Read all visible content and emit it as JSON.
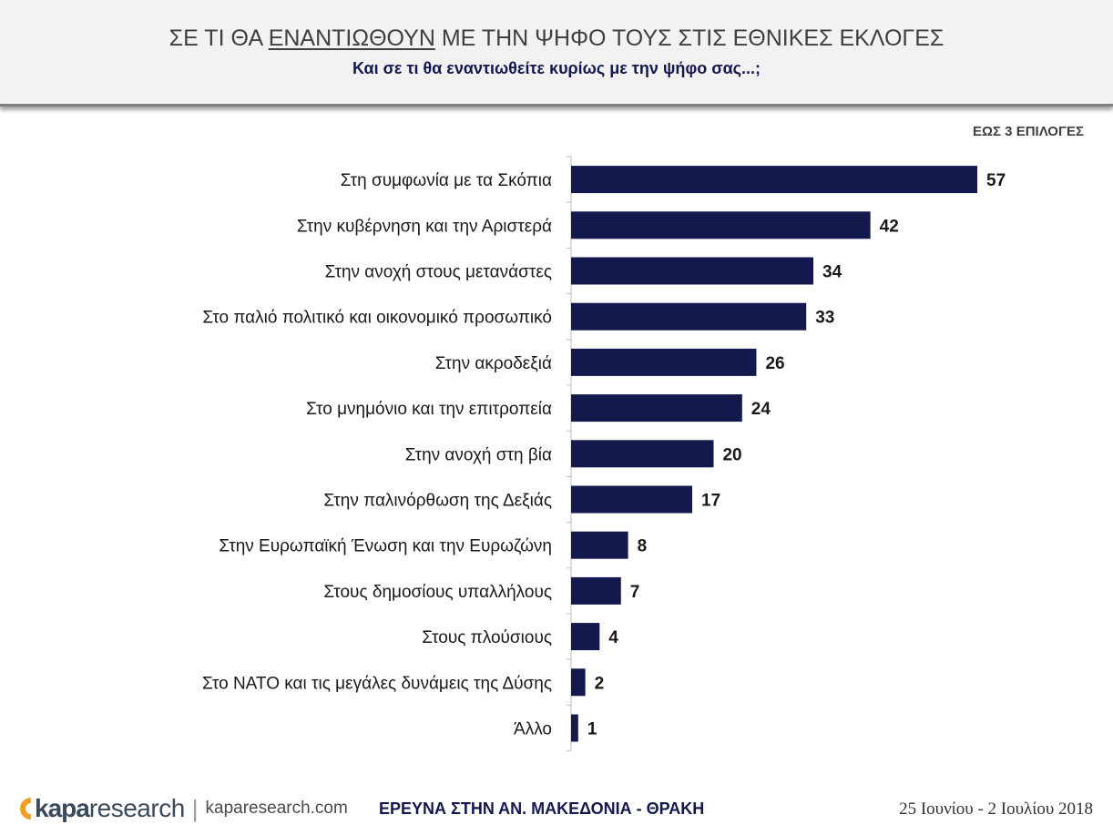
{
  "header": {
    "title_prefix": "ΣΕ ΤΙ ΘΑ ",
    "title_underlined": "ΕΝΑΝΤΙΩΘΟΥΝ",
    "title_suffix": " ΜΕ ΤΗΝ ΨΗΦΟ ΤΟΥΣ ΣΤΙΣ ΕΘΝΙΚΕΣ ΕΚΛΟΓΕΣ",
    "subtitle": "Και σε τι θα εναντιωθείτε κυρίως με την ψήφο σας...;"
  },
  "note": "ΕΩΣ 3 ΕΠΙΛΟΓΕΣ",
  "chart_data": {
    "type": "bar",
    "orientation": "horizontal",
    "categories": [
      "Στη συμφωνία με τα Σκόπια",
      "Στην κυβέρνηση και την Αριστερά",
      "Στην ανοχή στους μετανάστες",
      "Στο παλιό πολιτικό και οικονομικό προσωπικό",
      "Στην ακροδεξιά",
      "Στο μνημόνιο και την επιτροπεία",
      "Στην ανοχή στη βία",
      "Στην παλινόρθωση της Δεξιάς",
      "Στην Ευρωπαϊκή Ένωση και την Ευρωζώνη",
      "Στους δημοσίους υπαλλήλους",
      "Στους πλούσιους",
      "Στο ΝΑΤΟ και τις μεγάλες δυνάμεις της Δύσης",
      "Άλλο"
    ],
    "values": [
      57,
      42,
      34,
      33,
      26,
      24,
      20,
      17,
      8,
      7,
      4,
      2,
      1
    ],
    "bar_color": "#13194d",
    "xlim": [
      0,
      57
    ],
    "grid": false,
    "legend": "none"
  },
  "footer": {
    "logo_kapa": "kapa",
    "logo_research": "research",
    "logo_sep": "|",
    "site": "kaparesearch.com",
    "survey": "ΕΡΕΥΝΑ ΣΤΗΝ ΑΝ. ΜΑΚΕΔΟΝΙΑ - ΘΡΑΚΗ",
    "date": "25 Ιουνίου - 2 Ιουλίου 2018",
    "logo_color": "#f0a020"
  }
}
